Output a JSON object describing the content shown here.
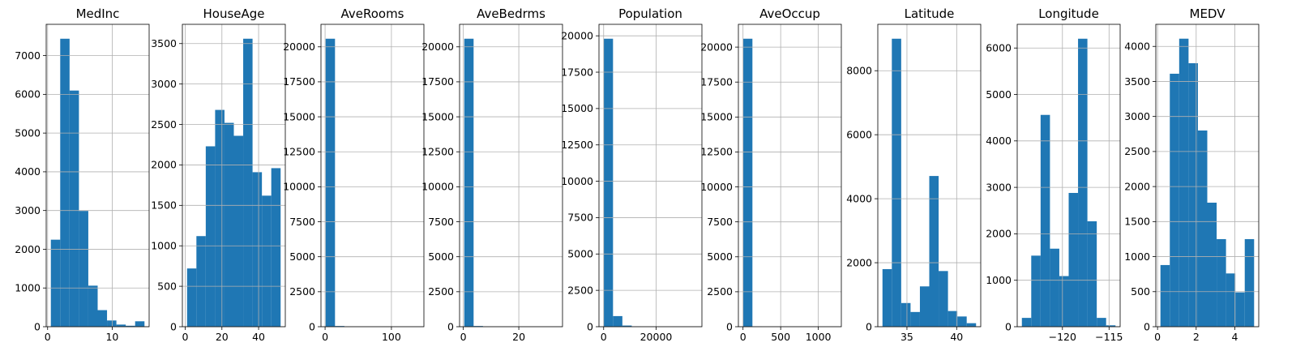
{
  "chart_data": [
    {
      "type": "bar",
      "title": "MedInc",
      "bar_color": "#1f77b4",
      "grid": true,
      "bin_range": [
        0.4999,
        15.0001
      ],
      "values": [
        2247,
        7436,
        6098,
        2990,
        1060,
        428,
        161,
        55,
        25,
        140
      ],
      "xlim": [
        -0.22,
        15.72
      ],
      "ylim": [
        0,
        7808
      ],
      "xticks": [
        0,
        10,
        20
      ],
      "xtick_labels": [
        "0",
        "10",
        ""
      ],
      "yticks": [
        0,
        1000,
        2000,
        3000,
        4000,
        5000,
        6000,
        7000
      ],
      "ytick_labels": [
        "0",
        "1000",
        "2000",
        "3000",
        "4000",
        "5000",
        "6000",
        "7000"
      ]
    },
    {
      "type": "bar",
      "title": "HouseAge",
      "bar_color": "#1f77b4",
      "grid": true,
      "bin_range": [
        1,
        52
      ],
      "values": [
        720,
        1120,
        2230,
        2680,
        2520,
        2360,
        3560,
        1910,
        1620,
        1960
      ],
      "xlim": [
        -1.55,
        54.55
      ],
      "ylim": [
        0,
        3738
      ],
      "xticks": [
        0,
        20,
        40
      ],
      "xtick_labels": [
        "0",
        "20",
        "40"
      ],
      "yticks": [
        0,
        500,
        1000,
        1500,
        2000,
        2500,
        3000,
        3500
      ],
      "ytick_labels": [
        "0",
        "500",
        "1000",
        "1500",
        "2000",
        "2500",
        "3000",
        "3500"
      ]
    },
    {
      "type": "bar",
      "title": "AveRooms",
      "bar_color": "#1f77b4",
      "grid": true,
      "bin_range": [
        0.846,
        141.909
      ],
      "values": [
        20580,
        50,
        5,
        0,
        0,
        0,
        0,
        0,
        0,
        5
      ],
      "xlim": [
        -6.2,
        148.96
      ],
      "ylim": [
        0,
        21609
      ],
      "xticks": [
        0,
        100
      ],
      "xtick_labels": [
        "0",
        "100"
      ],
      "yticks": [
        0,
        2500,
        5000,
        7500,
        10000,
        12500,
        15000,
        17500,
        20000
      ],
      "ytick_labels": [
        "0",
        "2500",
        "5000",
        "7500",
        "10000",
        "12500",
        "15000",
        "17500",
        "20000"
      ]
    },
    {
      "type": "bar",
      "title": "AveBedrms",
      "bar_color": "#1f77b4",
      "grid": true,
      "bin_range": [
        0.333,
        34.067
      ],
      "values": [
        20580,
        50,
        5,
        0,
        0,
        0,
        0,
        0,
        0,
        5
      ],
      "xlim": [
        -1.35,
        35.75
      ],
      "ylim": [
        0,
        21609
      ],
      "xticks": [
        0,
        20
      ],
      "xtick_labels": [
        "0",
        "20"
      ],
      "yticks": [
        0,
        2500,
        5000,
        7500,
        10000,
        12500,
        15000,
        17500,
        20000
      ],
      "ytick_labels": [
        "0",
        "2500",
        "5000",
        "7500",
        "10000",
        "12500",
        "15000",
        "17500",
        "20000"
      ]
    },
    {
      "type": "bar",
      "title": "Population",
      "bar_color": "#1f77b4",
      "grid": true,
      "bin_range": [
        3,
        35682
      ],
      "values": [
        19800,
        730,
        80,
        20,
        5,
        0,
        0,
        0,
        0,
        5
      ],
      "xlim": [
        -1781,
        37466
      ],
      "ylim": [
        0,
        20790
      ],
      "xticks": [
        0,
        20000
      ],
      "xtick_labels": [
        "0",
        "20000"
      ],
      "yticks": [
        0,
        2500,
        5000,
        7500,
        10000,
        12500,
        15000,
        17500,
        20000
      ],
      "ytick_labels": [
        "0",
        "2500",
        "5000",
        "7500",
        "10000",
        "12500",
        "15000",
        "17500",
        "20000"
      ]
    },
    {
      "type": "bar",
      "title": "AveOccup",
      "bar_color": "#1f77b4",
      "grid": true,
      "bin_range": [
        0.692,
        1243.333
      ],
      "values": [
        20600,
        25,
        5,
        0,
        0,
        0,
        0,
        0,
        0,
        5
      ],
      "xlim": [
        -61.4,
        1305.4
      ],
      "ylim": [
        0,
        21630
      ],
      "xticks": [
        0,
        500,
        1000
      ],
      "xtick_labels": [
        "0",
        "500",
        "1000"
      ],
      "yticks": [
        0,
        2500,
        5000,
        7500,
        10000,
        12500,
        15000,
        17500,
        20000
      ],
      "ytick_labels": [
        "0",
        "2500",
        "5000",
        "7500",
        "10000",
        "12500",
        "15000",
        "17500",
        "20000"
      ]
    },
    {
      "type": "bar",
      "title": "Latitude",
      "bar_color": "#1f77b4",
      "grid": true,
      "bin_range": [
        32.54,
        41.95
      ],
      "values": [
        1800,
        9000,
        740,
        460,
        1260,
        4710,
        1740,
        490,
        320,
        110
      ],
      "xlim": [
        32.07,
        42.42
      ],
      "ylim": [
        0,
        9450
      ],
      "xticks": [
        35,
        40
      ],
      "xtick_labels": [
        "35",
        "40"
      ],
      "yticks": [
        0,
        2000,
        4000,
        6000,
        8000
      ],
      "ytick_labels": [
        "0",
        "2000",
        "4000",
        "6000",
        "8000"
      ]
    },
    {
      "type": "bar",
      "title": "Longitude",
      "bar_color": "#1f77b4",
      "grid": true,
      "bin_range": [
        -124.35,
        -114.31
      ],
      "values": [
        190,
        1530,
        4560,
        1680,
        1090,
        2880,
        6200,
        2270,
        190,
        30
      ],
      "xlim": [
        -124.85,
        -113.81
      ],
      "ylim": [
        0,
        6510
      ],
      "xticks": [
        -120,
        -115
      ],
      "xtick_labels": [
        "−120",
        "−115"
      ],
      "yticks": [
        0,
        1000,
        2000,
        3000,
        4000,
        5000,
        6000
      ],
      "ytick_labels": [
        "0",
        "1000",
        "2000",
        "3000",
        "4000",
        "5000",
        "6000"
      ]
    },
    {
      "type": "bar",
      "title": "MEDV",
      "bar_color": "#1f77b4",
      "grid": true,
      "bin_range": [
        0.15,
        5.0
      ],
      "values": [
        880,
        3610,
        4110,
        3760,
        2800,
        1770,
        1250,
        760,
        490,
        1250
      ],
      "xlim": [
        -0.09,
        5.24
      ],
      "ylim": [
        0,
        4315
      ],
      "xticks": [
        0,
        2,
        4
      ],
      "xtick_labels": [
        "0",
        "2",
        "4"
      ],
      "yticks": [
        0,
        500,
        1000,
        1500,
        2000,
        2500,
        3000,
        3500,
        4000
      ],
      "ytick_labels": [
        "0",
        "500",
        "1000",
        "1500",
        "2000",
        "2500",
        "3000",
        "3500",
        "4000"
      ]
    }
  ]
}
